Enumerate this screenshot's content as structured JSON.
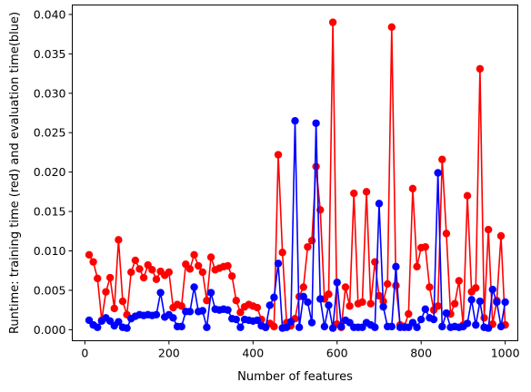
{
  "chart_data": {
    "type": "line",
    "xlabel": "Number of features",
    "ylabel": "Runtime: training time (red) and evaluation time(blue)",
    "xlim": [
      -30,
      1030
    ],
    "ylim": [
      -0.0014,
      0.0412
    ],
    "xticks": [
      0,
      200,
      400,
      600,
      800,
      1000
    ],
    "yticks": [
      0.0,
      0.005,
      0.01,
      0.015,
      0.02,
      0.025,
      0.03,
      0.035,
      0.04
    ],
    "ytick_labels": [
      "0.000",
      "0.005",
      "0.010",
      "0.015",
      "0.020",
      "0.025",
      "0.030",
      "0.035",
      "0.040"
    ],
    "x": [
      10,
      20,
      30,
      40,
      50,
      60,
      70,
      80,
      90,
      100,
      110,
      120,
      130,
      140,
      150,
      160,
      170,
      180,
      190,
      200,
      210,
      220,
      230,
      240,
      250,
      260,
      270,
      280,
      290,
      300,
      310,
      320,
      330,
      340,
      350,
      360,
      370,
      380,
      390,
      400,
      410,
      420,
      430,
      440,
      450,
      460,
      470,
      480,
      490,
      500,
      510,
      520,
      530,
      540,
      550,
      560,
      570,
      580,
      590,
      600,
      610,
      620,
      630,
      640,
      650,
      660,
      670,
      680,
      690,
      700,
      710,
      720,
      730,
      740,
      750,
      760,
      770,
      780,
      790,
      800,
      810,
      820,
      830,
      840,
      850,
      860,
      870,
      880,
      890,
      900,
      910,
      920,
      930,
      940,
      950,
      960,
      970,
      980,
      990,
      1000
    ],
    "series": [
      {
        "color": "#ff0000",
        "values": [
          0.0095,
          0.0086,
          0.0065,
          0.0012,
          0.0048,
          0.0066,
          0.0027,
          0.0114,
          0.0036,
          0.0019,
          0.0073,
          0.0088,
          0.0077,
          0.0066,
          0.0082,
          0.0076,
          0.0064,
          0.0074,
          0.0069,
          0.0073,
          0.0028,
          0.0032,
          0.003,
          0.0083,
          0.0077,
          0.0095,
          0.0081,
          0.0073,
          0.0037,
          0.0092,
          0.0076,
          0.0078,
          0.008,
          0.0081,
          0.0068,
          0.0037,
          0.0022,
          0.0029,
          0.0032,
          0.003,
          0.0028,
          0.0013,
          0.0003,
          0.0008,
          0.0004,
          0.0222,
          0.0098,
          0.0009,
          0.0005,
          0.0014,
          0.0042,
          0.0054,
          0.0105,
          0.0113,
          0.0207,
          0.0152,
          0.0039,
          0.0045,
          0.039,
          0.0007,
          0.0003,
          0.0054,
          0.003,
          0.0173,
          0.0033,
          0.0035,
          0.0175,
          0.0033,
          0.0086,
          0.0043,
          0.0036,
          0.0058,
          0.0384,
          0.0056,
          0.0006,
          0.0004,
          0.002,
          0.0179,
          0.008,
          0.0104,
          0.0105,
          0.0054,
          0.0025,
          0.003,
          0.0216,
          0.0122,
          0.002,
          0.0033,
          0.0062,
          0.0006,
          0.017,
          0.0048,
          0.0053,
          0.0331,
          0.0015,
          0.0127,
          0.0007,
          0.0037,
          0.0119,
          0.0006
        ]
      },
      {
        "color": "#0000ff",
        "values": [
          0.0012,
          0.0006,
          0.0003,
          0.0011,
          0.0015,
          0.0011,
          0.0005,
          0.001,
          0.0003,
          0.0002,
          0.0014,
          0.0017,
          0.0019,
          0.0018,
          0.0019,
          0.0018,
          0.0019,
          0.0047,
          0.0016,
          0.0019,
          0.0015,
          0.0004,
          0.0004,
          0.0023,
          0.0023,
          0.0054,
          0.0023,
          0.0024,
          0.0003,
          0.0047,
          0.0026,
          0.0025,
          0.0026,
          0.0025,
          0.0014,
          0.0013,
          0.0003,
          0.0013,
          0.0012,
          0.0011,
          0.0012,
          0.0005,
          0.0003,
          0.0031,
          0.0041,
          0.0084,
          0.0002,
          0.0003,
          0.001,
          0.0265,
          0.0003,
          0.0042,
          0.0035,
          0.0009,
          0.0262,
          0.0039,
          0.0004,
          0.0031,
          0.0002,
          0.006,
          0.0004,
          0.0012,
          0.0009,
          0.0003,
          0.0003,
          0.0003,
          0.0009,
          0.0006,
          0.0003,
          0.016,
          0.0029,
          0.0004,
          0.0004,
          0.008,
          0.0003,
          0.0003,
          0.0003,
          0.0009,
          0.0003,
          0.0013,
          0.0026,
          0.0015,
          0.0013,
          0.0199,
          0.0004,
          0.0021,
          0.0003,
          0.0004,
          0.0003,
          0.0004,
          0.0008,
          0.0038,
          0.0006,
          0.0036,
          0.0003,
          0.0002,
          0.0051,
          0.0035,
          0.0004,
          0.0035
        ]
      }
    ],
    "grid": false,
    "legend": false
  }
}
